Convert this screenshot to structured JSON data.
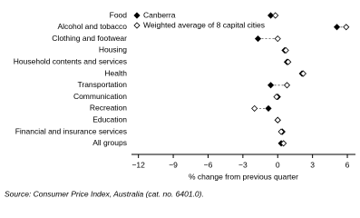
{
  "chart_data": {
    "type": "dot",
    "categories": [
      "Food",
      "Alcohol and tobacco",
      "Clothing and footwear",
      "Housing",
      "Household contents and services",
      "Health",
      "Transportation",
      "Communication",
      "Recreation",
      "Education",
      "Financial and insurance services",
      "All groups"
    ],
    "series": [
      {
        "name": "Canberra",
        "color": "#000000",
        "marker": "filled",
        "values": [
          -0.6,
          5.1,
          -1.7,
          0.6,
          0.8,
          2.1,
          -0.6,
          0.0,
          -0.8,
          0.0,
          0.4,
          0.3
        ]
      },
      {
        "name": "Weighted average of 8 capital cities",
        "color": "#000000",
        "marker": "open",
        "values": [
          -0.2,
          5.9,
          0.0,
          0.7,
          0.9,
          2.2,
          0.8,
          -0.1,
          -2.0,
          0.0,
          0.3,
          0.5
        ]
      }
    ],
    "xlabel": "% change from previous quarter",
    "xlim": [
      -12.6,
      6.7
    ],
    "xticks": [
      {
        "value": -12,
        "label": "−12"
      },
      {
        "value": -9,
        "label": "−9"
      },
      {
        "value": -6,
        "label": "−6"
      },
      {
        "value": -3,
        "label": "−3"
      },
      0,
      3,
      6
    ],
    "legend": "top-left",
    "source": "Source: Consumer Price Index, Australia (cat. no. 6401.0)."
  }
}
